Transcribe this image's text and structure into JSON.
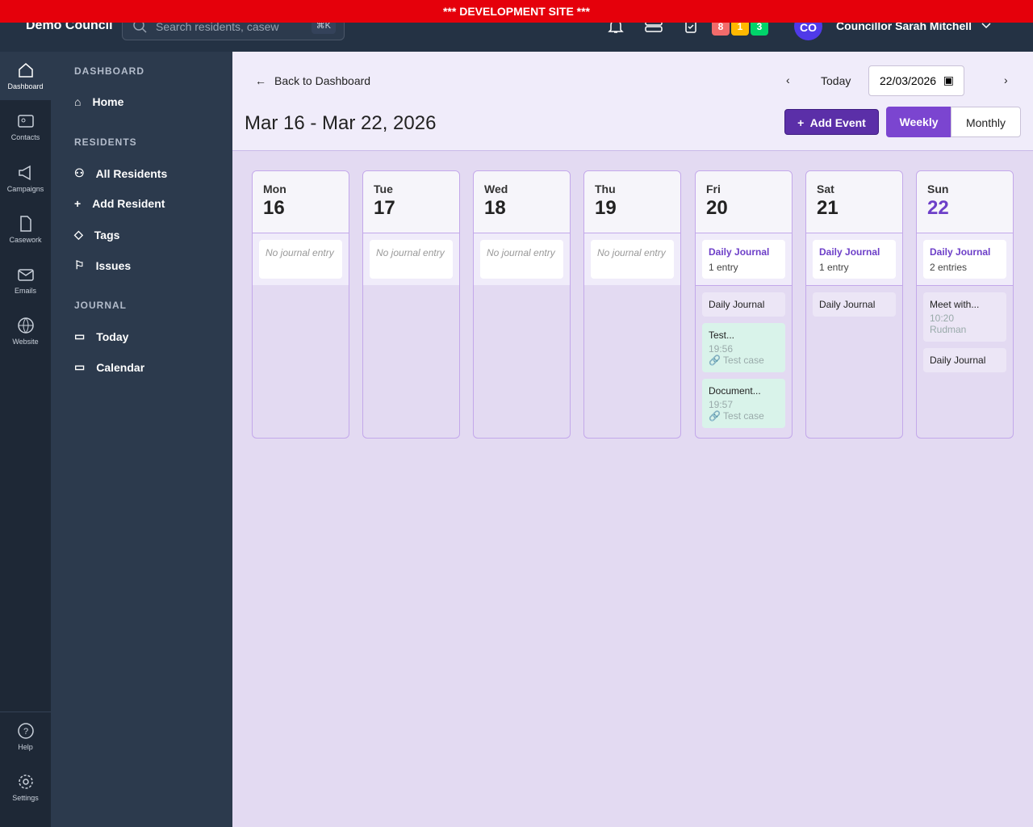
{
  "banner": "*** DEVELOPMENT SITE ***",
  "topbar": {
    "brand": "Demo Council",
    "search_placeholder": "Search residents, casew",
    "shortcut": "⌘K",
    "badges": [
      {
        "value": "8",
        "color": "#f26b6b"
      },
      {
        "value": "1",
        "color": "#ffb800"
      },
      {
        "value": "3",
        "color": "#00d46a"
      }
    ],
    "avatar": "CO",
    "user": "Councillor Sarah Mitchell"
  },
  "rail": [
    {
      "label": "Dashboard",
      "icon": "home-icon"
    },
    {
      "label": "Contacts",
      "icon": "contact-card-icon"
    },
    {
      "label": "Campaigns",
      "icon": "megaphone-icon"
    },
    {
      "label": "Casework",
      "icon": "document-icon"
    },
    {
      "label": "Emails",
      "icon": "mail-icon"
    },
    {
      "label": "Website",
      "icon": "globe-icon"
    },
    {
      "label": "Help",
      "icon": "help-icon"
    },
    {
      "label": "Settings",
      "icon": "gear-icon"
    }
  ],
  "sidebar": {
    "sections": [
      "DASHBOARD",
      "RESIDENTS",
      "JOURNAL"
    ],
    "items": [
      "Home",
      "All Residents",
      "Add Resident",
      "Tags",
      "Issues",
      "Today",
      "Calendar"
    ]
  },
  "main": {
    "back": "Back to Dashboard",
    "title": "Mar 16 - Mar 22, 2026",
    "today": "Today",
    "date": "22/03/2026",
    "add_event": "Add Event",
    "weekly": "Weekly",
    "monthly": "Monthly"
  },
  "days": [
    {
      "dow": "Mon",
      "num": "16",
      "journal": "No journal entry"
    },
    {
      "dow": "Tue",
      "num": "17",
      "journal": "No journal entry"
    },
    {
      "dow": "Wed",
      "num": "18",
      "journal": "No journal entry"
    },
    {
      "dow": "Thu",
      "num": "19",
      "journal": "No journal entry"
    },
    {
      "dow": "Fri",
      "num": "20",
      "journal_title": "Daily Journal",
      "journal_count": "1 entry",
      "events": [
        {
          "title": "Daily Journal"
        },
        {
          "title": "Test...",
          "time": "19:56",
          "link": "🔗 Test case",
          "color": "green"
        },
        {
          "title": "Document...",
          "time": "19:57",
          "link": "🔗 Test case",
          "color": "green"
        }
      ]
    },
    {
      "dow": "Sat",
      "num": "21",
      "journal_title": "Daily Journal",
      "journal_count": "1 entry",
      "events": [
        {
          "title": "Daily Journal"
        }
      ]
    },
    {
      "dow": "Sun",
      "num": "22",
      "today": true,
      "journal_title": "Daily Journal",
      "journal_count": "2 entries",
      "events": [
        {
          "title": "Meet with...",
          "time": "10:20",
          "link": "Rudman"
        },
        {
          "title": "Daily Journal"
        }
      ]
    }
  ]
}
